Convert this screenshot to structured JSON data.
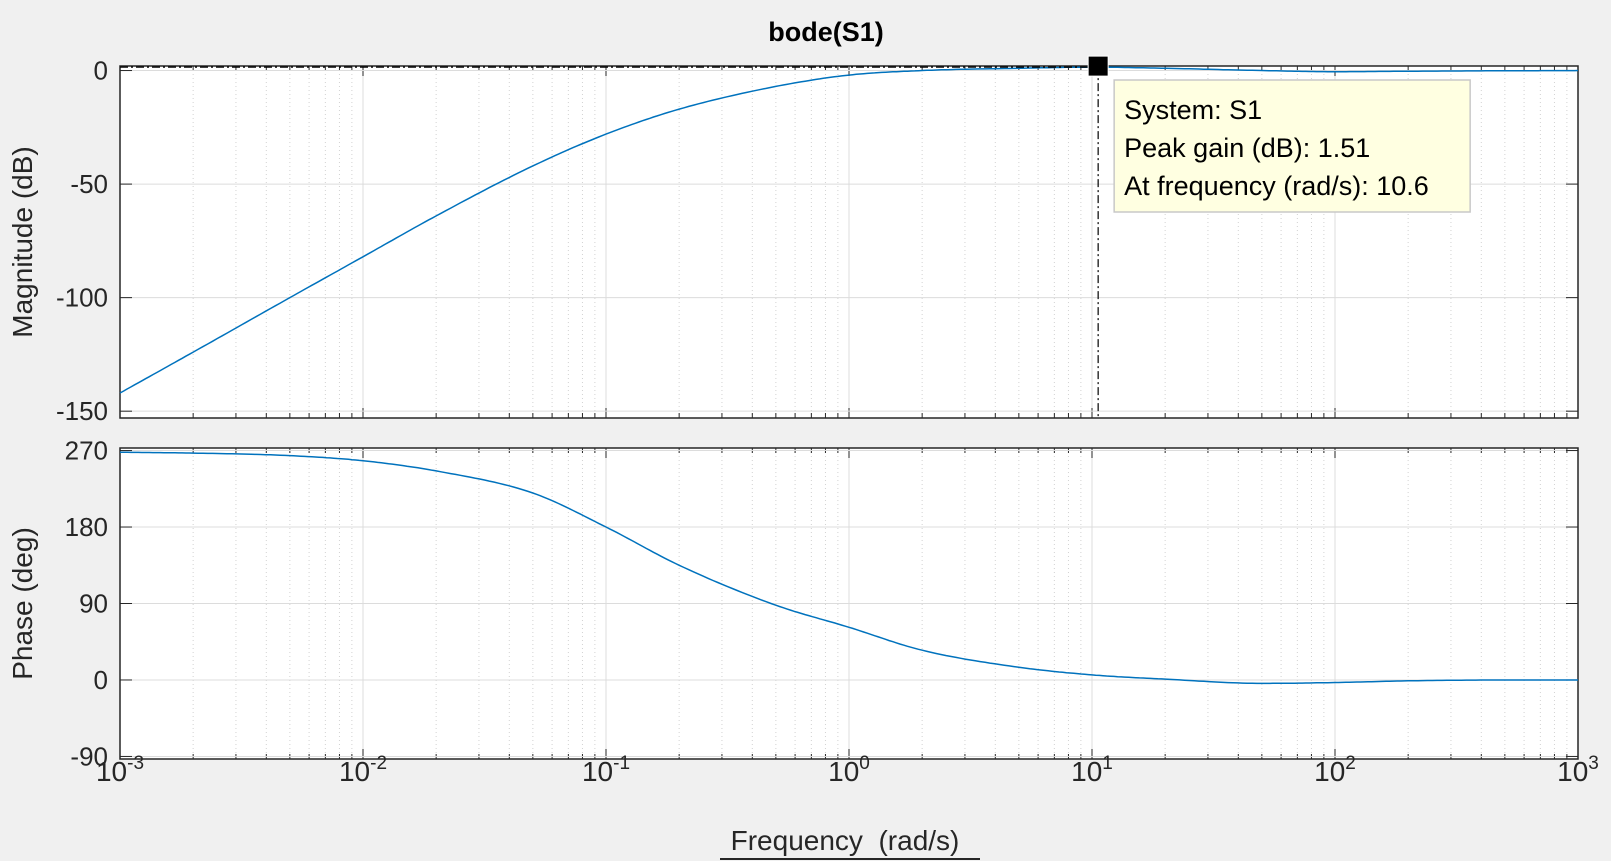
{
  "chart_data": {
    "type": "line",
    "title": "bode(S1)",
    "xlabel": "Frequency  (rad/s)",
    "xscale": "log",
    "xlim": [
      0.001,
      1000
    ],
    "x_ticks": [
      {
        "base": "10",
        "exp": "-3"
      },
      {
        "base": "10",
        "exp": "-2"
      },
      {
        "base": "10",
        "exp": "-1"
      },
      {
        "base": "10",
        "exp": "0"
      },
      {
        "base": "10",
        "exp": "1"
      },
      {
        "base": "10",
        "exp": "2"
      },
      {
        "base": "10",
        "exp": "3"
      }
    ],
    "grid": true,
    "line_color": "#0072bd",
    "panels": [
      {
        "ylabel": "Magnitude (dB)",
        "ylim": [
          -153,
          2
        ],
        "yticks": [
          0,
          -50,
          -100,
          -150
        ],
        "ytick_labels": [
          "0",
          "-50",
          "-100",
          "-150"
        ],
        "x": [
          0.001,
          0.002,
          0.005,
          0.01,
          0.02,
          0.05,
          0.1,
          0.2,
          0.5,
          1,
          2,
          5,
          10,
          20,
          50,
          100,
          200,
          500,
          1000
        ],
        "y": [
          -142,
          -124,
          -100,
          -82,
          -64,
          -42,
          -28,
          -17,
          -7,
          -2,
          0,
          1,
          1.5,
          1,
          0,
          -0.5,
          -0.3,
          -0.1,
          0
        ]
      },
      {
        "ylabel": "Phase (deg)",
        "ylim": [
          -93,
          273
        ],
        "yticks": [
          270,
          180,
          90,
          0,
          -90
        ],
        "ytick_labels": [
          "270",
          "180",
          "90",
          "0",
          "-90"
        ],
        "x": [
          0.001,
          0.002,
          0.005,
          0.01,
          0.02,
          0.05,
          0.1,
          0.2,
          0.5,
          1,
          2,
          5,
          10,
          20,
          50,
          100,
          200,
          500,
          1000
        ],
        "y": [
          268,
          267,
          264,
          258,
          246,
          220,
          180,
          135,
          88,
          62,
          35,
          15,
          6,
          1,
          -4,
          -3,
          -1,
          0,
          0
        ]
      }
    ],
    "annotation": {
      "panel": 0,
      "x": 10.6,
      "y": 1.51,
      "lines": [
        "System: S1",
        "Peak gain (dB): 1.51",
        "At frequency (rad/s): 10.6"
      ],
      "box_color": "#ffffe1",
      "marker_color": "#000000"
    }
  }
}
